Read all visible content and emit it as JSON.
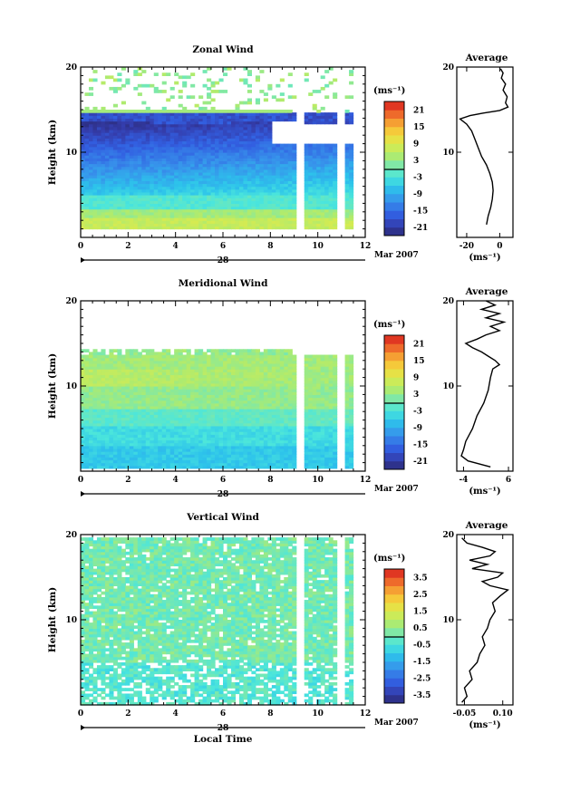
{
  "chart_data": [
    {
      "type": "heatmap",
      "title": "Zonal Wind",
      "ylabel": "Height (km)",
      "xlabel": "",
      "x_ticks": [
        "0",
        "2",
        "4",
        "6",
        "8",
        "10",
        "12"
      ],
      "y_ticks": [
        "10",
        "20"
      ],
      "xlim": [
        0,
        12
      ],
      "ylim": [
        0,
        20
      ],
      "date_label": "28",
      "date_suffix": "Mar 2007",
      "colorbar_unit": "(ms⁻¹)",
      "colorbar_ticks": [
        "21",
        "15",
        "9",
        "3",
        "-3",
        "-9",
        "-15",
        "-21"
      ],
      "colorbar_range": [
        -24,
        24
      ],
      "kind": "zonal",
      "avg_title": "Average",
      "avg_x_ticks": [
        "-20",
        "0"
      ],
      "avg_xlim": [
        -26,
        8
      ],
      "avg_unit": "(ms⁻¹)",
      "avg_profile": [
        [
          -8,
          1.5
        ],
        [
          -7,
          2.5
        ],
        [
          -5.5,
          3.5
        ],
        [
          -4.5,
          4.5
        ],
        [
          -4,
          5.5
        ],
        [
          -4.5,
          6.5
        ],
        [
          -6,
          7.5
        ],
        [
          -8,
          8.5
        ],
        [
          -11,
          9.5
        ],
        [
          -13,
          10.5
        ],
        [
          -15,
          11.5
        ],
        [
          -17,
          12.5
        ],
        [
          -20,
          13.3
        ],
        [
          -24,
          13.9
        ],
        [
          -18,
          14.3
        ],
        [
          -10,
          14.6
        ],
        [
          0,
          14.9
        ],
        [
          5,
          15.3
        ],
        [
          3.5,
          15.8
        ],
        [
          4.5,
          16.5
        ],
        [
          2,
          17.3
        ],
        [
          3.5,
          18
        ],
        [
          1,
          18.7
        ],
        [
          2,
          19.3
        ],
        [
          0.5,
          19.8
        ]
      ]
    },
    {
      "type": "heatmap",
      "title": "Meridional Wind",
      "ylabel": "Height (km)",
      "xlabel": "",
      "x_ticks": [
        "0",
        "2",
        "4",
        "6",
        "8",
        "10",
        "12"
      ],
      "y_ticks": [
        "10",
        "20"
      ],
      "xlim": [
        0,
        12
      ],
      "ylim": [
        0,
        20
      ],
      "date_label": "28",
      "date_suffix": "Mar 2007",
      "colorbar_unit": "(ms⁻¹)",
      "colorbar_ticks": [
        "21",
        "15",
        "9",
        "3",
        "-3",
        "-9",
        "-15",
        "-21"
      ],
      "colorbar_range": [
        -24,
        24
      ],
      "kind": "meridional",
      "avg_title": "Average",
      "avg_x_ticks": [
        "-4",
        "6"
      ],
      "avg_xlim": [
        -5.5,
        7
      ],
      "avg_unit": "(ms⁻¹)",
      "avg_profile": [
        [
          2,
          0.5
        ],
        [
          -3,
          1.2
        ],
        [
          -4.5,
          1.8
        ],
        [
          -4,
          2.5
        ],
        [
          -3.5,
          3.5
        ],
        [
          -2,
          5
        ],
        [
          -1,
          6.5
        ],
        [
          0.5,
          8
        ],
        [
          1.5,
          9.5
        ],
        [
          2,
          11
        ],
        [
          2.5,
          12
        ],
        [
          4,
          12.5
        ],
        [
          3,
          13
        ],
        [
          1.5,
          13.5
        ],
        [
          0,
          14
        ],
        [
          -2,
          14.5
        ],
        [
          -3.5,
          15
        ],
        [
          -1,
          15.5
        ],
        [
          1,
          16
        ],
        [
          4,
          16.5
        ],
        [
          2,
          17
        ],
        [
          5,
          17.5
        ],
        [
          1,
          18
        ],
        [
          4,
          18.5
        ],
        [
          0,
          19
        ],
        [
          3,
          19.5
        ],
        [
          1,
          20
        ]
      ]
    },
    {
      "type": "heatmap",
      "title": "Vertical Wind",
      "ylabel": "Height (km)",
      "xlabel": "Local Time",
      "x_ticks": [
        "0",
        "2",
        "4",
        "6",
        "8",
        "10",
        "12"
      ],
      "y_ticks": [
        "10",
        "20"
      ],
      "xlim": [
        0,
        12
      ],
      "ylim": [
        0,
        20
      ],
      "date_label": "28",
      "date_suffix": "Mar 2007",
      "colorbar_unit": "(ms⁻¹)",
      "colorbar_ticks": [
        "3.5",
        "2.5",
        "1.5",
        "0.5",
        "-0.5",
        "-1.5",
        "-2.5",
        "-3.5"
      ],
      "colorbar_range": [
        -4,
        4
      ],
      "kind": "vertical",
      "avg_title": "Average",
      "avg_x_ticks": [
        "-0.05",
        "0.10"
      ],
      "avg_xlim": [
        -0.08,
        0.14
      ],
      "avg_unit": "(ms⁻¹)",
      "avg_profile": [
        [
          -0.06,
          0.3
        ],
        [
          -0.04,
          1
        ],
        [
          -0.05,
          2
        ],
        [
          -0.02,
          3
        ],
        [
          -0.03,
          4
        ],
        [
          0,
          5
        ],
        [
          0.01,
          6
        ],
        [
          0.03,
          7
        ],
        [
          0.02,
          8
        ],
        [
          0.04,
          9
        ],
        [
          0.05,
          10
        ],
        [
          0.07,
          11
        ],
        [
          0.06,
          12
        ],
        [
          0.09,
          12.8
        ],
        [
          0.12,
          13.5
        ],
        [
          0.05,
          14
        ],
        [
          0.02,
          14.5
        ],
        [
          0.08,
          15
        ],
        [
          0.1,
          15.5
        ],
        [
          -0.02,
          16
        ],
        [
          0.04,
          16.5
        ],
        [
          -0.03,
          17
        ],
        [
          0.05,
          17.5
        ],
        [
          0.07,
          18
        ],
        [
          0.02,
          18.5
        ],
        [
          -0.04,
          19
        ],
        [
          -0.06,
          19.6
        ]
      ]
    }
  ]
}
